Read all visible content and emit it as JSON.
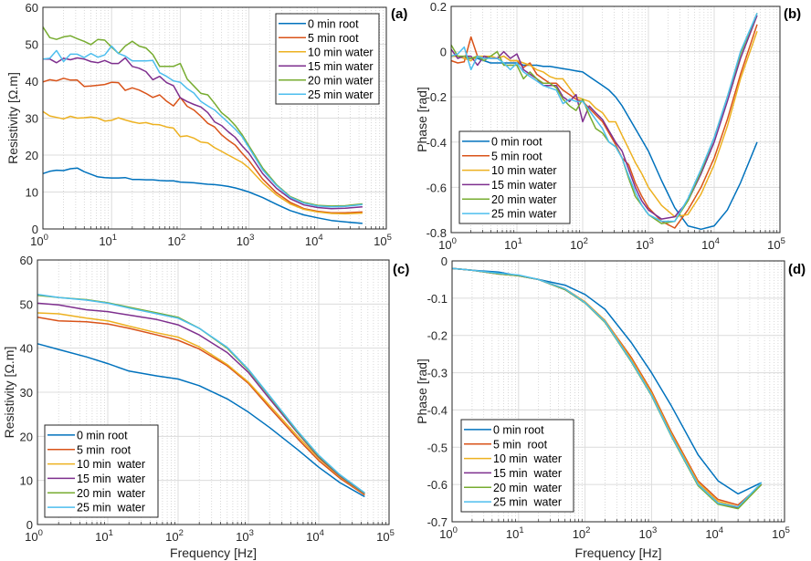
{
  "colors": [
    "#0072BD",
    "#D95319",
    "#EDB120",
    "#7E2F8E",
    "#77AC30",
    "#4DBEEE"
  ],
  "chart_data": [
    {
      "panel_label": "(a)",
      "type": "line",
      "xscale": "log",
      "xlim": [
        1,
        100000
      ],
      "xtick_labels": [
        {
          "base": "10",
          "exp": "0"
        },
        {
          "base": "10",
          "exp": "1"
        },
        {
          "base": "10",
          "exp": "2"
        },
        {
          "base": "10",
          "exp": "3"
        },
        {
          "base": "10",
          "exp": "4"
        },
        {
          "base": "10",
          "exp": "5"
        }
      ],
      "ylim": [
        0,
        60
      ],
      "yticks": [
        0,
        10,
        20,
        30,
        40,
        50,
        60
      ],
      "ytick_labels": [
        "0",
        "10",
        "20",
        "30",
        "40",
        "50",
        "60"
      ],
      "xlabel": "",
      "ylabel": "Resistivity  [Ω.m]",
      "grid": true,
      "legend_placement": "top-right",
      "x": [
        1,
        1.26,
        1.58,
        2,
        2.51,
        3.16,
        3.98,
        5.01,
        6.31,
        7.94,
        10,
        12.6,
        15.8,
        20,
        25.1,
        31.6,
        39.8,
        50.1,
        63.1,
        79.4,
        100,
        126,
        158,
        200,
        251,
        316,
        398,
        501,
        631,
        794,
        1000,
        1585,
        2512,
        3981,
        6310,
        10000,
        15849,
        25119,
        45000
      ],
      "series": [
        {
          "name": "0 min root",
          "values": [
            15,
            15.6,
            15.9,
            15.8,
            16.3,
            16.5,
            15.5,
            14.8,
            14.1,
            13.9,
            13.8,
            13.8,
            13.9,
            13.4,
            13.4,
            13.3,
            13.3,
            13.1,
            13.0,
            13.0,
            12.7,
            12.6,
            12.5,
            12.3,
            12.1,
            12.0,
            11.8,
            11.5,
            11.1,
            10.6,
            10.0,
            8.5,
            6.7,
            5.0,
            3.8,
            3.0,
            2.3,
            1.9,
            1.5
          ]
        },
        {
          "name": "5 min root",
          "values": [
            39.8,
            40.4,
            40.1,
            40.8,
            40.3,
            40.3,
            38.6,
            38.7,
            38.9,
            39.1,
            39.7,
            39.6,
            37.5,
            38.2,
            37.6,
            36.7,
            35.6,
            36.3,
            34.6,
            33.3,
            35.6,
            33.2,
            32.2,
            30.5,
            28.6,
            27.6,
            25.5,
            24.0,
            22.7,
            20.5,
            18.5,
            13.5,
            9.8,
            7.2,
            5.5,
            4.8,
            4.4,
            4.4,
            4.6
          ]
        },
        {
          "name": "10 min water",
          "values": [
            31.8,
            30.6,
            30.2,
            29.8,
            30.5,
            30.0,
            30.1,
            30.3,
            30.0,
            29.2,
            29.4,
            30.1,
            29.5,
            29.0,
            28.6,
            28.8,
            28.3,
            28.2,
            27.6,
            27.3,
            25.0,
            25.2,
            24.6,
            23.5,
            23.3,
            22.0,
            21.0,
            20.0,
            19.0,
            18.0,
            16.5,
            12.5,
            9.2,
            6.8,
            5.3,
            4.6,
            4.2,
            4.1,
            4.3
          ]
        },
        {
          "name": "15 min water",
          "values": [
            46,
            46,
            45,
            46.2,
            45.8,
            46.3,
            46.0,
            45.3,
            45.0,
            45.6,
            44.8,
            44.8,
            46.3,
            44.0,
            43.5,
            42.6,
            40.4,
            41.3,
            39.6,
            38.8,
            35.5,
            34.5,
            33.7,
            33.0,
            31.5,
            29.0,
            28.0,
            26.3,
            24.8,
            22.5,
            20.5,
            15.0,
            11.0,
            8.2,
            6.5,
            5.8,
            5.5,
            5.6,
            6.0
          ]
        },
        {
          "name": "20 min water",
          "values": [
            54.7,
            51.8,
            51.3,
            52.0,
            52.3,
            51.5,
            50.8,
            49.9,
            51.3,
            51.1,
            49.2,
            47.5,
            49.5,
            50.8,
            49.5,
            49.0,
            47.2,
            44.0,
            44.0,
            44.0,
            44.8,
            40.6,
            38.7,
            36.7,
            36.3,
            34.0,
            31.5,
            30.0,
            28.0,
            25.5,
            22.5,
            16.5,
            12.0,
            8.8,
            7.2,
            6.4,
            6.2,
            6.3,
            6.8
          ]
        },
        {
          "name": "25 min water",
          "values": [
            46,
            46.2,
            48.3,
            45.3,
            47.3,
            47.3,
            46.4,
            47.5,
            46.5,
            47.1,
            49.5,
            47.5,
            46.8,
            45.5,
            45.5,
            45.5,
            45.6,
            42.3,
            41.3,
            40.1,
            39.7,
            38.0,
            36.8,
            34.5,
            33.3,
            32.2,
            30.5,
            28.8,
            27.0,
            25.0,
            22.0,
            16.0,
            11.8,
            8.6,
            7.0,
            6.2,
            6.0,
            6.1,
            6.6
          ]
        }
      ]
    },
    {
      "panel_label": "(b)",
      "type": "line",
      "xscale": "log",
      "xlim": [
        1,
        100000
      ],
      "xtick_labels": [
        {
          "base": "10",
          "exp": "0"
        },
        {
          "base": "10",
          "exp": "1"
        },
        {
          "base": "10",
          "exp": "2"
        },
        {
          "base": "10",
          "exp": "3"
        },
        {
          "base": "10",
          "exp": "4"
        },
        {
          "base": "10",
          "exp": "5"
        }
      ],
      "ylim": [
        -0.8,
        0.2
      ],
      "yticks": [
        -0.8,
        -0.6,
        -0.4,
        -0.2,
        0,
        0.2
      ],
      "ytick_labels": [
        "-0.8",
        "-0.6",
        "-0.4",
        "-0.2",
        "0",
        "0.2"
      ],
      "xlabel": "",
      "ylabel": "Phase [rad]",
      "grid": true,
      "legend_placement": "bottom-left",
      "x": [
        1,
        1.26,
        1.58,
        2,
        2.51,
        3.16,
        3.98,
        5.01,
        6.31,
        7.94,
        10,
        12.6,
        15.8,
        20,
        25.1,
        31.6,
        39.8,
        50.1,
        63.1,
        79.4,
        100,
        126,
        158,
        200,
        251,
        316,
        398,
        501,
        631,
        794,
        1000,
        1585,
        2512,
        3981,
        6310,
        10000,
        15849,
        25119,
        45000
      ],
      "series": [
        {
          "name": "0 min root",
          "values": [
            -0.02,
            -0.02,
            -0.03,
            -0.03,
            -0.03,
            -0.04,
            -0.05,
            -0.05,
            -0.05,
            -0.05,
            -0.05,
            -0.06,
            -0.06,
            -0.06,
            -0.065,
            -0.065,
            -0.07,
            -0.075,
            -0.08,
            -0.085,
            -0.09,
            -0.11,
            -0.13,
            -0.15,
            -0.17,
            -0.2,
            -0.24,
            -0.29,
            -0.34,
            -0.39,
            -0.44,
            -0.57,
            -0.69,
            -0.77,
            -0.785,
            -0.77,
            -0.7,
            -0.58,
            -0.4
          ]
        },
        {
          "name": "5 min root",
          "values": [
            -0.04,
            -0.05,
            -0.045,
            0.065,
            -0.02,
            -0.03,
            -0.02,
            -0.03,
            -0.02,
            -0.04,
            -0.04,
            -0.07,
            -0.05,
            -0.1,
            -0.12,
            -0.14,
            -0.14,
            -0.17,
            -0.19,
            -0.21,
            -0.22,
            -0.25,
            -0.28,
            -0.31,
            -0.36,
            -0.41,
            -0.47,
            -0.5,
            -0.58,
            -0.64,
            -0.69,
            -0.75,
            -0.78,
            -0.7,
            -0.6,
            -0.47,
            -0.3,
            -0.1,
            0.12
          ]
        },
        {
          "name": "10 min water",
          "values": [
            -0.02,
            -0.02,
            -0.03,
            -0.04,
            -0.02,
            -0.02,
            -0.02,
            -0.03,
            -0.02,
            -0.04,
            -0.04,
            -0.05,
            -0.06,
            -0.08,
            -0.09,
            -0.11,
            -0.12,
            -0.12,
            -0.16,
            -0.2,
            -0.21,
            -0.22,
            -0.25,
            -0.27,
            -0.31,
            -0.31,
            -0.37,
            -0.43,
            -0.49,
            -0.54,
            -0.6,
            -0.68,
            -0.73,
            -0.72,
            -0.63,
            -0.5,
            -0.33,
            -0.12,
            0.09
          ]
        },
        {
          "name": "15 min water",
          "values": [
            0.01,
            -0.03,
            -0.02,
            -0.02,
            -0.06,
            -0.02,
            -0.03,
            -0.03,
            0.0,
            -0.03,
            -0.01,
            -0.08,
            -0.1,
            -0.12,
            -0.15,
            -0.15,
            -0.15,
            -0.2,
            -0.22,
            -0.19,
            -0.31,
            -0.24,
            -0.27,
            -0.3,
            -0.35,
            -0.4,
            -0.44,
            -0.52,
            -0.6,
            -0.66,
            -0.7,
            -0.74,
            -0.73,
            -0.66,
            -0.54,
            -0.4,
            -0.22,
            -0.03,
            0.16
          ]
        },
        {
          "name": "20 min water",
          "values": [
            0.03,
            -0.02,
            -0.02,
            -0.03,
            -0.02,
            -0.04,
            -0.02,
            0.0,
            -0.06,
            -0.06,
            -0.06,
            -0.12,
            -0.09,
            -0.12,
            -0.14,
            -0.14,
            -0.16,
            -0.21,
            -0.24,
            -0.26,
            -0.21,
            -0.28,
            -0.34,
            -0.36,
            -0.4,
            -0.42,
            -0.47,
            -0.56,
            -0.64,
            -0.68,
            -0.72,
            -0.76,
            -0.75,
            -0.66,
            -0.53,
            -0.38,
            -0.2,
            -0.01,
            0.17
          ]
        },
        {
          "name": "25 min water",
          "values": [
            -0.02,
            -0.01,
            0.02,
            -0.08,
            -0.02,
            -0.03,
            -0.03,
            -0.03,
            -0.05,
            -0.08,
            -0.05,
            -0.09,
            -0.11,
            -0.13,
            -0.15,
            -0.16,
            -0.17,
            -0.23,
            -0.21,
            -0.22,
            -0.22,
            -0.26,
            -0.3,
            -0.34,
            -0.4,
            -0.42,
            -0.47,
            -0.55,
            -0.62,
            -0.68,
            -0.72,
            -0.75,
            -0.75,
            -0.65,
            -0.52,
            -0.38,
            -0.2,
            0.0,
            0.17
          ]
        }
      ]
    },
    {
      "panel_label": "(c)",
      "type": "line",
      "xscale": "log",
      "xlim": [
        1,
        100000
      ],
      "xtick_labels": [
        {
          "base": "10",
          "exp": "0"
        },
        {
          "base": "10",
          "exp": "1"
        },
        {
          "base": "10",
          "exp": "2"
        },
        {
          "base": "10",
          "exp": "3"
        },
        {
          "base": "10",
          "exp": "4"
        },
        {
          "base": "10",
          "exp": "5"
        }
      ],
      "ylim": [
        0,
        60
      ],
      "yticks": [
        0,
        10,
        20,
        30,
        40,
        50,
        60
      ],
      "ytick_labels": [
        "0",
        "10",
        "20",
        "30",
        "40",
        "50",
        "60"
      ],
      "xlabel": "Frequency [Hz]",
      "ylabel": "Resistivity  [Ω.m]",
      "grid": true,
      "legend_placement": "bottom-left",
      "x": [
        1,
        2,
        5,
        10,
        20,
        50,
        100,
        200,
        500,
        1000,
        2000,
        5000,
        10000,
        20000,
        45000
      ],
      "series": [
        {
          "name": "0 min root",
          "values": [
            41,
            39.7,
            38,
            36.5,
            34.8,
            33.7,
            33,
            31.5,
            28.5,
            25.5,
            22,
            17,
            13,
            9.5,
            6.3
          ]
        },
        {
          "name": "5 min  root",
          "values": [
            47,
            46.2,
            46,
            45.5,
            44.5,
            43,
            41.8,
            39.8,
            36,
            32,
            26.5,
            19.5,
            14.5,
            10.5,
            6.7
          ]
        },
        {
          "name": "10 min  water",
          "values": [
            48,
            47.8,
            46.8,
            46.2,
            45,
            43.5,
            42.5,
            40.3,
            36.3,
            32.3,
            27,
            20,
            15,
            10.8,
            6.9
          ]
        },
        {
          "name": "15 min  water",
          "values": [
            50.2,
            49.8,
            48.7,
            48.3,
            47.5,
            46.5,
            45.3,
            43,
            39,
            34.5,
            28.5,
            20.8,
            15.3,
            11,
            7.0
          ]
        },
        {
          "name": "20 min  water",
          "values": [
            52,
            51.5,
            51,
            50.3,
            49.3,
            48,
            47,
            44.5,
            40,
            35,
            29,
            21,
            15.5,
            11.2,
            7.1
          ]
        },
        {
          "name": "25 min  water",
          "values": [
            52.2,
            51.5,
            50.9,
            50.2,
            49.1,
            47.8,
            46.8,
            44.5,
            40.2,
            35.2,
            29.2,
            21.2,
            15.7,
            11.3,
            7.2
          ]
        }
      ]
    },
    {
      "panel_label": "(d)",
      "type": "line",
      "xscale": "log",
      "xlim": [
        1,
        100000
      ],
      "xtick_labels": [
        {
          "base": "10",
          "exp": "0"
        },
        {
          "base": "10",
          "exp": "1"
        },
        {
          "base": "10",
          "exp": "2"
        },
        {
          "base": "10",
          "exp": "3"
        },
        {
          "base": "10",
          "exp": "4"
        },
        {
          "base": "10",
          "exp": "5"
        }
      ],
      "ylim": [
        -0.7,
        0
      ],
      "yticks": [
        -0.7,
        -0.6,
        -0.5,
        -0.4,
        -0.3,
        -0.2,
        -0.1,
        0
      ],
      "ytick_labels": [
        "-0.7",
        "-0.6",
        "-0.5",
        "-0.4",
        "-0.3",
        "-0.2",
        "-0.1",
        "0"
      ],
      "xlabel": "Frequency [Hz]",
      "ylabel": "Phase [rad]",
      "grid": true,
      "legend_placement": "bottom-left",
      "x": [
        1,
        2,
        5,
        10,
        20,
        50,
        100,
        200,
        500,
        1000,
        2000,
        5000,
        10000,
        20000,
        45000
      ],
      "series": [
        {
          "name": "0 min root",
          "values": [
            -0.02,
            -0.025,
            -0.03,
            -0.04,
            -0.05,
            -0.065,
            -0.09,
            -0.13,
            -0.22,
            -0.3,
            -0.39,
            -0.52,
            -0.59,
            -0.625,
            -0.595
          ]
        },
        {
          "name": "5 min  root",
          "values": [
            -0.02,
            -0.025,
            -0.035,
            -0.04,
            -0.05,
            -0.075,
            -0.11,
            -0.16,
            -0.26,
            -0.35,
            -0.46,
            -0.59,
            -0.64,
            -0.655,
            -0.6
          ]
        },
        {
          "name": "10 min  water",
          "values": [
            -0.02,
            -0.025,
            -0.035,
            -0.04,
            -0.05,
            -0.075,
            -0.11,
            -0.16,
            -0.265,
            -0.355,
            -0.465,
            -0.595,
            -0.645,
            -0.66,
            -0.6
          ]
        },
        {
          "name": "15 min  water",
          "values": [
            -0.02,
            -0.025,
            -0.035,
            -0.04,
            -0.05,
            -0.077,
            -0.112,
            -0.163,
            -0.27,
            -0.36,
            -0.47,
            -0.6,
            -0.65,
            -0.662,
            -0.6
          ]
        },
        {
          "name": "20 min  water",
          "values": [
            -0.02,
            -0.025,
            -0.035,
            -0.04,
            -0.05,
            -0.077,
            -0.113,
            -0.165,
            -0.272,
            -0.362,
            -0.472,
            -0.603,
            -0.653,
            -0.665,
            -0.6
          ]
        },
        {
          "name": "25 min  water",
          "values": [
            -0.02,
            -0.025,
            -0.033,
            -0.038,
            -0.05,
            -0.075,
            -0.112,
            -0.163,
            -0.27,
            -0.36,
            -0.47,
            -0.6,
            -0.65,
            -0.66,
            -0.595
          ]
        }
      ]
    }
  ]
}
